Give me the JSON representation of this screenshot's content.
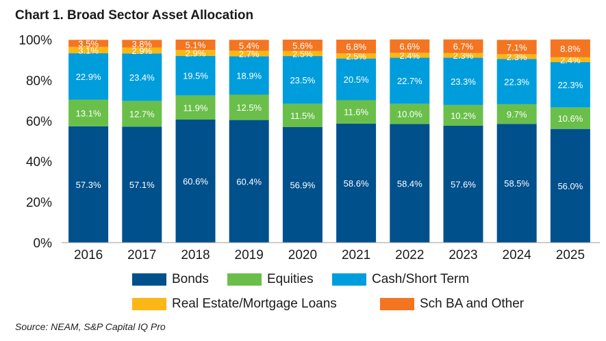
{
  "title": "Chart 1. Broad Sector Asset Allocation",
  "source": "Source: NEAM, S&P Capital IQ Pro",
  "chart_data": {
    "type": "bar",
    "stacked": true,
    "title": "Chart 1. Broad Sector Asset Allocation",
    "xlabel": "",
    "ylabel": "",
    "ylim": [
      0,
      100
    ],
    "yticks": [
      "0%",
      "20%",
      "40%",
      "60%",
      "80%",
      "100%"
    ],
    "categories": [
      "2016",
      "2017",
      "2018",
      "2019",
      "2020",
      "2021",
      "2022",
      "2023",
      "2024",
      "2025"
    ],
    "series": [
      {
        "name": "Bonds",
        "color": "#00508c",
        "values": [
          57.3,
          57.1,
          60.6,
          60.4,
          56.9,
          58.6,
          58.4,
          57.6,
          58.5,
          56.0
        ],
        "labels": [
          "57.3%",
          "57.1%",
          "60.6%",
          "60.4%",
          "56.9%",
          "58.6%",
          "58.4%",
          "57.6%",
          "58.5%",
          "56.0%"
        ]
      },
      {
        "name": "Equities",
        "color": "#6abf4b",
        "values": [
          13.1,
          12.7,
          11.9,
          12.5,
          11.5,
          11.6,
          10.0,
          10.2,
          9.7,
          10.6
        ],
        "labels": [
          "13.1%",
          "12.7%",
          "11.9%",
          "12.5%",
          "11.5%",
          "11.6%",
          "10.0%",
          "10.2%",
          "9.7%",
          "10.6%"
        ]
      },
      {
        "name": "Cash/Short Term",
        "color": "#009ddc",
        "values": [
          22.9,
          23.4,
          19.5,
          18.9,
          23.5,
          20.5,
          22.7,
          23.3,
          22.3,
          22.3
        ],
        "labels": [
          "22.9%",
          "23.4%",
          "19.5%",
          "18.9%",
          "23.5%",
          "20.5%",
          "22.7%",
          "23.3%",
          "22.3%",
          "22.3%"
        ]
      },
      {
        "name": "Real Estate/Mortgage Loans",
        "color": "#fbb715",
        "values": [
          3.1,
          2.9,
          2.9,
          2.7,
          2.5,
          2.5,
          2.4,
          2.3,
          2.3,
          2.4
        ],
        "labels": [
          "3.1%",
          "2.9%",
          "2.9%",
          "2.7%",
          "2.5%",
          "2.5%",
          "2.4%",
          "2.3%",
          "2.3%",
          "2.4%"
        ]
      },
      {
        "name": "Sch BA and Other",
        "color": "#f47521",
        "values": [
          3.5,
          3.8,
          5.1,
          5.4,
          5.6,
          6.8,
          6.6,
          6.7,
          7.1,
          8.8
        ],
        "labels": [
          "3.5%",
          "3.8%",
          "5.1%",
          "5.4%",
          "5.6%",
          "6.8%",
          "6.6%",
          "6.7%",
          "7.1%",
          "8.8%"
        ]
      }
    ],
    "legend_position": "bottom",
    "grid": false
  }
}
